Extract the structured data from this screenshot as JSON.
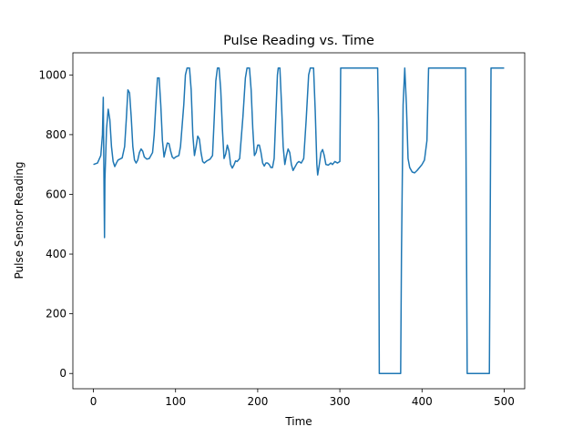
{
  "chart_data": {
    "type": "line",
    "title": "Pulse Reading vs. Time",
    "xlabel": "Time",
    "ylabel": "Pulse Sensor Reading",
    "color": "#1f77b4",
    "x": [
      0,
      5,
      9,
      11,
      12,
      13,
      13.5,
      14,
      16,
      18,
      20,
      22,
      24,
      26,
      28,
      30,
      35,
      38,
      40,
      42,
      44,
      46,
      48,
      50,
      52,
      54,
      56,
      58,
      60,
      62,
      65,
      68,
      72,
      74,
      76,
      78,
      80,
      82,
      84,
      86,
      88,
      90,
      92,
      94,
      96,
      98,
      100,
      104,
      106,
      110,
      112,
      114,
      117,
      119,
      121,
      123,
      125,
      127,
      129,
      131,
      133,
      135,
      138,
      142,
      145,
      147,
      149,
      151,
      153,
      155,
      157,
      159,
      161,
      163,
      165,
      167,
      169,
      171,
      173,
      175,
      178,
      182,
      185,
      187,
      190,
      192,
      194,
      196,
      198,
      200,
      202,
      204,
      206,
      208,
      210,
      212,
      214,
      216,
      218,
      220,
      222,
      224,
      225,
      227,
      229,
      231,
      233,
      235,
      237,
      239,
      241,
      243,
      245,
      248,
      250,
      253,
      256,
      259,
      262,
      264,
      268,
      270,
      272,
      273,
      275,
      277,
      279,
      281,
      283,
      286,
      289,
      291,
      294,
      297,
      300,
      301,
      346,
      347,
      348,
      374,
      375,
      377,
      379,
      381,
      383,
      385,
      388,
      391,
      394,
      397,
      400,
      403,
      406,
      408,
      453,
      455,
      482,
      484,
      500
    ],
    "values": [
      700,
      705,
      730,
      800,
      925,
      600,
      455,
      650,
      820,
      885,
      850,
      760,
      710,
      693,
      705,
      715,
      722,
      760,
      850,
      950,
      940,
      860,
      760,
      715,
      705,
      715,
      740,
      752,
      745,
      725,
      718,
      720,
      740,
      800,
      900,
      990,
      990,
      900,
      780,
      725,
      750,
      772,
      770,
      745,
      725,
      720,
      725,
      730,
      760,
      900,
      1000,
      1023,
      1023,
      950,
      800,
      730,
      760,
      795,
      785,
      740,
      710,
      705,
      712,
      718,
      730,
      850,
      980,
      1023,
      1023,
      950,
      820,
      720,
      735,
      765,
      745,
      700,
      688,
      698,
      712,
      710,
      720,
      860,
      990,
      1023,
      1023,
      950,
      820,
      730,
      740,
      765,
      765,
      740,
      705,
      695,
      705,
      705,
      700,
      690,
      690,
      720,
      860,
      1000,
      1023,
      1023,
      900,
      760,
      700,
      730,
      752,
      740,
      700,
      680,
      690,
      705,
      710,
      705,
      720,
      850,
      1000,
      1023,
      1023,
      880,
      700,
      665,
      700,
      740,
      750,
      730,
      700,
      698,
      705,
      700,
      710,
      705,
      710,
      1023,
      1023,
      850,
      0,
      0,
      400,
      900,
      1023,
      900,
      720,
      690,
      675,
      672,
      680,
      690,
      700,
      715,
      780,
      1023,
      1023,
      0,
      0,
      1023,
      1023
    ],
    "xlim": [
      -25,
      525
    ],
    "ylim": [
      -51.15,
      1074.15
    ],
    "xticks": [
      0,
      100,
      200,
      300,
      400,
      500
    ],
    "yticks": [
      0,
      200,
      400,
      600,
      800,
      1000
    ]
  }
}
